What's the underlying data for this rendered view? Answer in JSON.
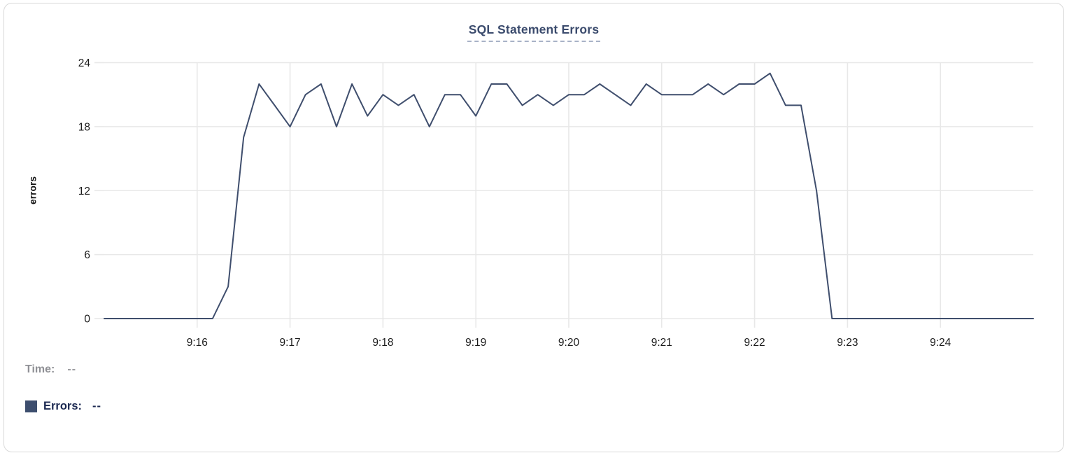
{
  "title": "SQL Statement Errors",
  "chart_data": {
    "type": "line",
    "title": "SQL Statement Errors",
    "xlabel": "",
    "ylabel": "errors",
    "ylim": [
      0,
      24
    ],
    "y_ticks": [
      0,
      6,
      12,
      18,
      24
    ],
    "x_tick_labels": [
      "9:16",
      "9:17",
      "9:18",
      "9:19",
      "9:20",
      "9:21",
      "9:22",
      "9:23",
      "9:24"
    ],
    "x_start": "9:15:00",
    "x_end": "9:25:00",
    "sample_interval_seconds": 10,
    "grid": true,
    "legend_position": "bottom-left",
    "series": [
      {
        "name": "Errors",
        "color": "#3f4e6d",
        "times": [
          "9:15:00",
          "9:15:10",
          "9:15:20",
          "9:15:30",
          "9:15:40",
          "9:15:50",
          "9:16:00",
          "9:16:10",
          "9:16:20",
          "9:16:30",
          "9:16:40",
          "9:16:50",
          "9:17:00",
          "9:17:10",
          "9:17:20",
          "9:17:30",
          "9:17:40",
          "9:17:50",
          "9:18:00",
          "9:18:10",
          "9:18:20",
          "9:18:30",
          "9:18:40",
          "9:18:50",
          "9:19:00",
          "9:19:10",
          "9:19:20",
          "9:19:30",
          "9:19:40",
          "9:19:50",
          "9:20:00",
          "9:20:10",
          "9:20:20",
          "9:20:30",
          "9:20:40",
          "9:20:50",
          "9:21:00",
          "9:21:10",
          "9:21:20",
          "9:21:30",
          "9:21:40",
          "9:21:50",
          "9:22:00",
          "9:22:10",
          "9:22:20",
          "9:22:30",
          "9:22:40",
          "9:22:50",
          "9:23:00",
          "9:23:10",
          "9:23:20",
          "9:23:30",
          "9:23:40",
          "9:23:50",
          "9:24:00",
          "9:24:10",
          "9:24:20",
          "9:24:30",
          "9:24:40",
          "9:24:50",
          "9:25:00"
        ],
        "values": [
          0,
          0,
          0,
          0,
          0,
          0,
          0,
          0,
          3,
          17,
          22,
          20,
          18,
          21,
          22,
          18,
          22,
          19,
          21,
          20,
          21,
          18,
          21,
          21,
          19,
          22,
          22,
          20,
          21,
          20,
          21,
          21,
          22,
          21,
          20,
          22,
          21,
          21,
          21,
          22,
          21,
          22,
          22,
          23,
          20,
          20,
          12,
          0,
          0,
          0,
          0,
          0,
          0,
          0,
          0,
          0,
          0,
          0,
          0,
          0,
          0
        ]
      }
    ]
  },
  "tooltip": {
    "time_label": "Time:",
    "time_value": "--",
    "errors_label": "Errors:",
    "errors_value": "--"
  },
  "colors": {
    "line": "#3f4e6d",
    "grid": "#e8e8e8",
    "axis_text": "#1b1b1b",
    "title_text": "#3b4b6d",
    "title_underline": "#a9b3c7",
    "legend_swatch": "#3d4e6e",
    "legend_text": "#1d2a52",
    "muted_text": "#8f9095",
    "card_border": "#d9d9d9"
  }
}
